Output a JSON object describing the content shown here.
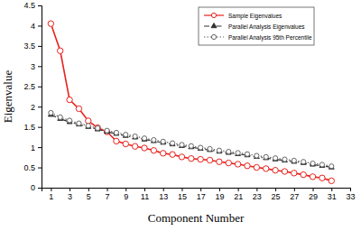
{
  "chart_data": {
    "type": "line",
    "x_label": "Component Number",
    "y_label": "Eigenvalue",
    "x": [
      1,
      2,
      3,
      4,
      5,
      6,
      7,
      8,
      9,
      10,
      11,
      12,
      13,
      14,
      15,
      16,
      17,
      18,
      19,
      20,
      21,
      22,
      23,
      24,
      25,
      26,
      27,
      28,
      29,
      30,
      31
    ],
    "series": [
      {
        "name": "Sample Eigenvalues",
        "color": "#e8221c",
        "marker": "circle",
        "line_style": "solid",
        "values": [
          4.05,
          3.38,
          2.17,
          1.95,
          1.65,
          1.48,
          1.38,
          1.15,
          1.08,
          1.02,
          0.98,
          0.92,
          0.85,
          0.82,
          0.76,
          0.72,
          0.7,
          0.68,
          0.64,
          0.61,
          0.58,
          0.54,
          0.5,
          0.47,
          0.43,
          0.4,
          0.36,
          0.32,
          0.27,
          0.24,
          0.17
        ]
      },
      {
        "name": "Parallel Analysis Eigenvalues",
        "color": "#333333",
        "marker": "triangle",
        "line_style": "dashdot",
        "values": [
          1.8,
          1.7,
          1.62,
          1.56,
          1.5,
          1.44,
          1.38,
          1.33,
          1.28,
          1.24,
          1.19,
          1.15,
          1.11,
          1.07,
          1.03,
          1.0,
          0.96,
          0.93,
          0.89,
          0.86,
          0.83,
          0.8,
          0.76,
          0.73,
          0.7,
          0.67,
          0.64,
          0.61,
          0.57,
          0.54,
          0.5
        ]
      },
      {
        "name": "Parallel Analysis 95th Percentile",
        "color": "#666666",
        "marker": "circle",
        "line_style": "dotted",
        "values": [
          1.85,
          1.74,
          1.66,
          1.59,
          1.53,
          1.47,
          1.41,
          1.36,
          1.31,
          1.27,
          1.22,
          1.18,
          1.14,
          1.1,
          1.06,
          1.03,
          0.99,
          0.96,
          0.92,
          0.89,
          0.86,
          0.83,
          0.79,
          0.76,
          0.73,
          0.7,
          0.67,
          0.64,
          0.6,
          0.57,
          0.53
        ]
      }
    ],
    "xlim": [
      0,
      33
    ],
    "xticks": [
      1,
      3,
      5,
      7,
      9,
      11,
      13,
      15,
      17,
      19,
      21,
      23,
      25,
      27,
      29,
      31,
      33
    ],
    "ylim": [
      0,
      4.5
    ],
    "yticks": [
      0,
      0.5,
      1,
      1.5,
      2,
      2.5,
      3,
      3.5,
      4,
      4.5
    ],
    "grid": false,
    "legend": "upper right"
  }
}
